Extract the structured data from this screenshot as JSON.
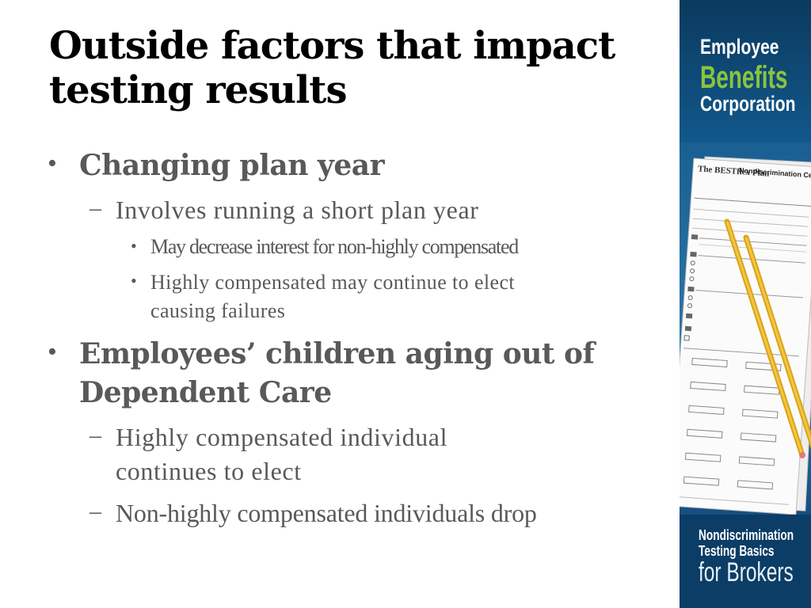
{
  "slide": {
    "title": "Outside factors that impact testing results",
    "bullets": {
      "b1": "Changing plan year",
      "b1_1": "Involves running a short plan year",
      "b1_1_1": "May decrease interest for non-highly compensated",
      "b1_1_2_line1": "Highly compensated may continue to elect",
      "b1_1_2_line2": "causing failures",
      "b2_line1": "Employees’ children aging out of",
      "b2_line2": "Dependent Care",
      "b2_1_line1": "Highly compensated individual",
      "b2_1_line2": "continues to elect",
      "b2_2": "Non-highly compensated individuals drop"
    },
    "markers": {
      "level1": "•",
      "level2": "–",
      "level3": "•"
    }
  },
  "sidebar": {
    "brand": {
      "line1": "Employee",
      "line2": "Benefits",
      "line3": "Corporation"
    },
    "form_logo": "The BESTflex Plan",
    "form_title": "Nondiscrimination Ce",
    "footer": {
      "line1": "Nondiscrimination",
      "line2": "Testing Basics",
      "line3": "for Brokers"
    },
    "colors": {
      "background": "#0f4f7e",
      "brand_green": "#8bc43f"
    }
  }
}
